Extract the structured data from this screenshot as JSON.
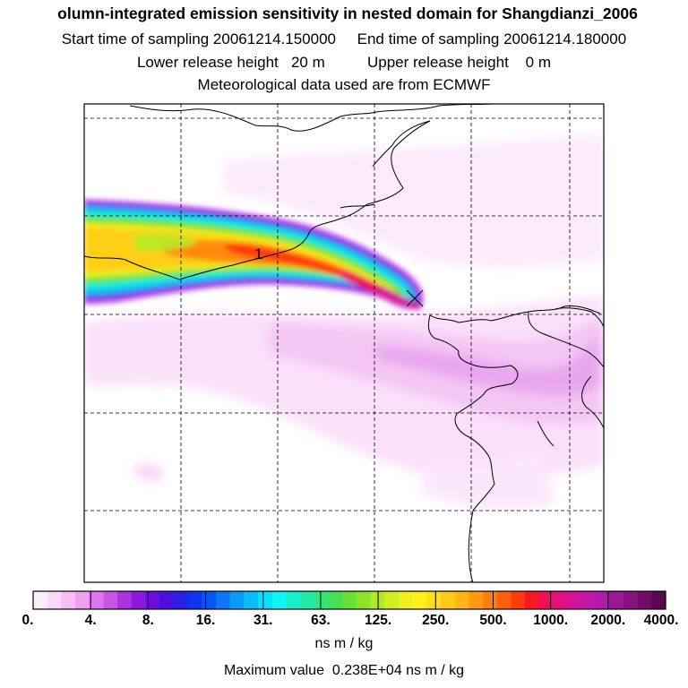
{
  "header": {
    "title": "olumn-integrated emission sensitivity in nested domain for Shangdianzi_2006",
    "sampling_line": "Start time of sampling 20061214.150000     End time of sampling 20061214.180000",
    "release_line": "Lower release height   20 m          Upper release height    0 m",
    "meteo_line": "Meteorological data used are from ECMWF"
  },
  "map": {
    "contour_label": "1",
    "station_marker": "x-marker"
  },
  "colorbar": {
    "tick_labels": [
      "0.",
      "4.",
      "8.",
      "16.",
      "31.",
      "63.",
      "125.",
      "250.",
      "500.",
      "1000.",
      "2000.",
      "4000."
    ],
    "colors": [
      "#fdeefd",
      "#fbd8fb",
      "#f7bdf7",
      "#eea0ee",
      "#dd77ee",
      "#c655e8",
      "#a833e0",
      "#8c18dc",
      "#6a0fd8",
      "#4a10dd",
      "#2a20e6",
      "#1035ee",
      "#0a55f2",
      "#0a78f5",
      "#0a9af8",
      "#0bbcfa",
      "#0cddfb",
      "#10f5f0",
      "#15f0cc",
      "#20eba5",
      "#30e67d",
      "#45e055",
      "#65e035",
      "#8ae52a",
      "#b0ea25",
      "#d2ee20",
      "#eef020",
      "#fff01c",
      "#ffe018",
      "#ffcc15",
      "#ffb512",
      "#ff9a10",
      "#ff7d0e",
      "#ff5f0c",
      "#ff3c0a",
      "#f81820",
      "#f0105a",
      "#e41080",
      "#d41498",
      "#c218a8",
      "#b01aa8",
      "#9c1696",
      "#881280",
      "#700c68",
      "#58084e"
    ],
    "units": "ns m / kg"
  },
  "footer": {
    "max_value": "Maximum value  0.238E+04 ns m / kg"
  }
}
